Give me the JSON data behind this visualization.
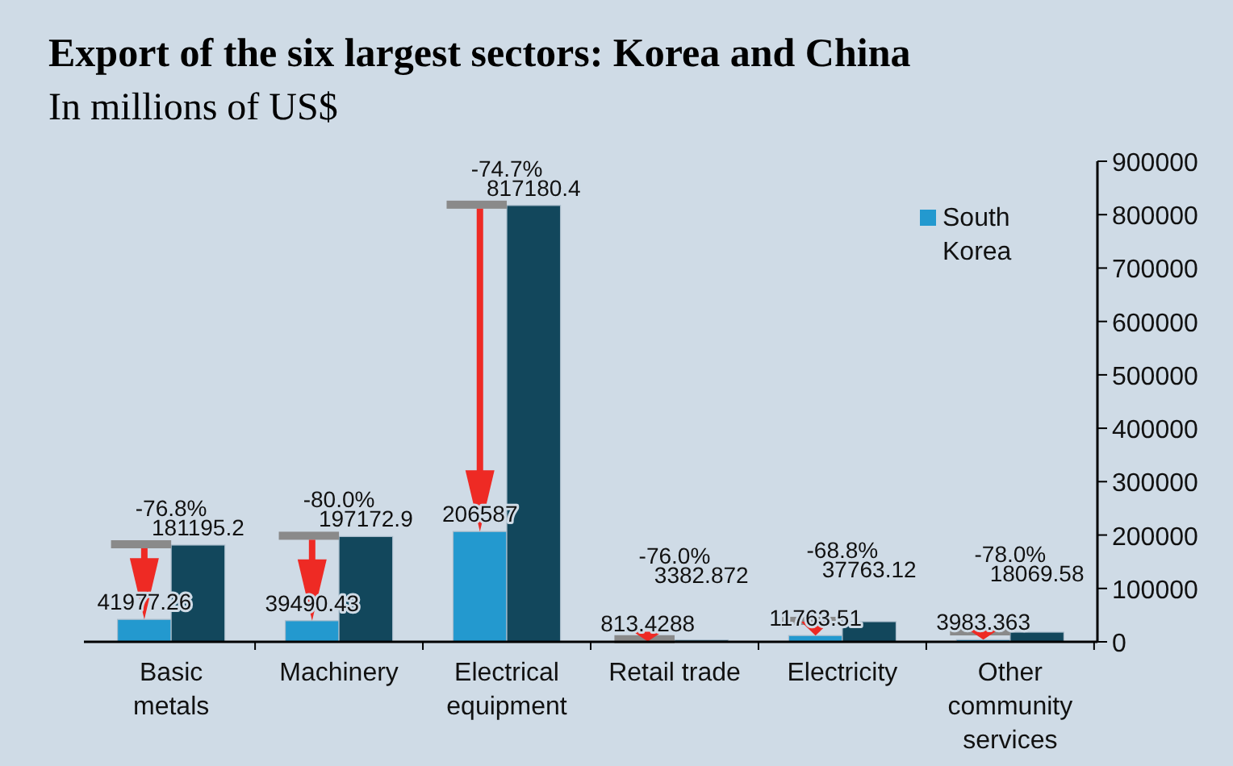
{
  "chart_data": {
    "type": "bar",
    "title": "Export of the six largest sectors: Korea and China",
    "subtitle": "In millions of US$",
    "categories": [
      "Basic metals",
      "Machinery",
      "Electrical equipment",
      "Retail trade",
      "Electricity",
      "Other community services"
    ],
    "series": [
      {
        "name": "South Korea",
        "color": "#2399cf",
        "values": [
          41977.26,
          39490.43,
          206587,
          813.4288,
          11763.51,
          3983.363
        ]
      },
      {
        "color": "#12475c",
        "values": [
          181195.2,
          197172.9,
          817180.4,
          3382.872,
          37763.12,
          18069.58
        ]
      }
    ],
    "annotations": [
      "-76.8%",
      "-80.0%",
      "-74.7%",
      "-76.0%",
      "-68.8%",
      "-78.0%"
    ],
    "ylim": [
      0,
      900000
    ],
    "yticks": [
      0,
      100000,
      200000,
      300000,
      400000,
      500000,
      600000,
      700000,
      800000,
      900000
    ],
    "data_labels": true,
    "legend": "top right",
    "grid": false
  }
}
